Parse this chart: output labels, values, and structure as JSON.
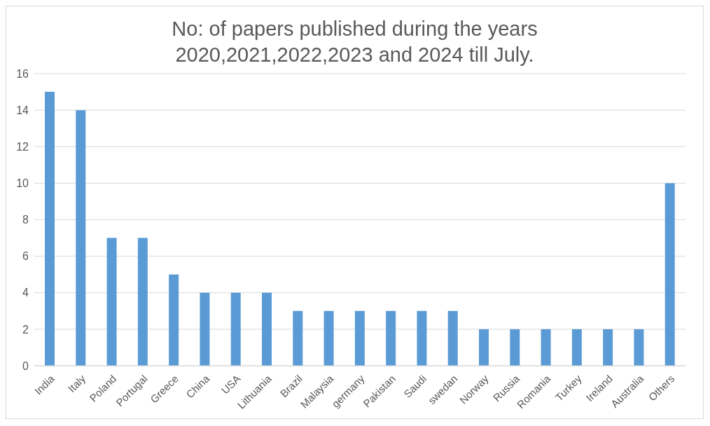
{
  "chart_data": {
    "type": "bar",
    "title": "No: of papers published during the years 2020,2021,2022,2023 and 2024 till July.",
    "categories": [
      "India",
      "Italy",
      "Poland",
      "Portugal",
      "Greece",
      "China",
      "USA",
      "Lithuania",
      "Brazil",
      "Malaysia",
      "germany",
      "Pakistan",
      "Saudi",
      "swedan",
      "Norway",
      "Russia",
      "Romania",
      "Turkey",
      "Ireland",
      "Australia",
      "Others"
    ],
    "values": [
      15,
      14,
      7,
      7,
      5,
      4,
      4,
      4,
      3,
      3,
      3,
      3,
      3,
      3,
      2,
      2,
      2,
      2,
      2,
      2,
      10
    ],
    "color": "#5b9bd5",
    "ylim": [
      0,
      16
    ],
    "yticks": [
      0,
      2,
      4,
      6,
      8,
      10,
      12,
      14,
      16
    ],
    "grid": "y"
  }
}
